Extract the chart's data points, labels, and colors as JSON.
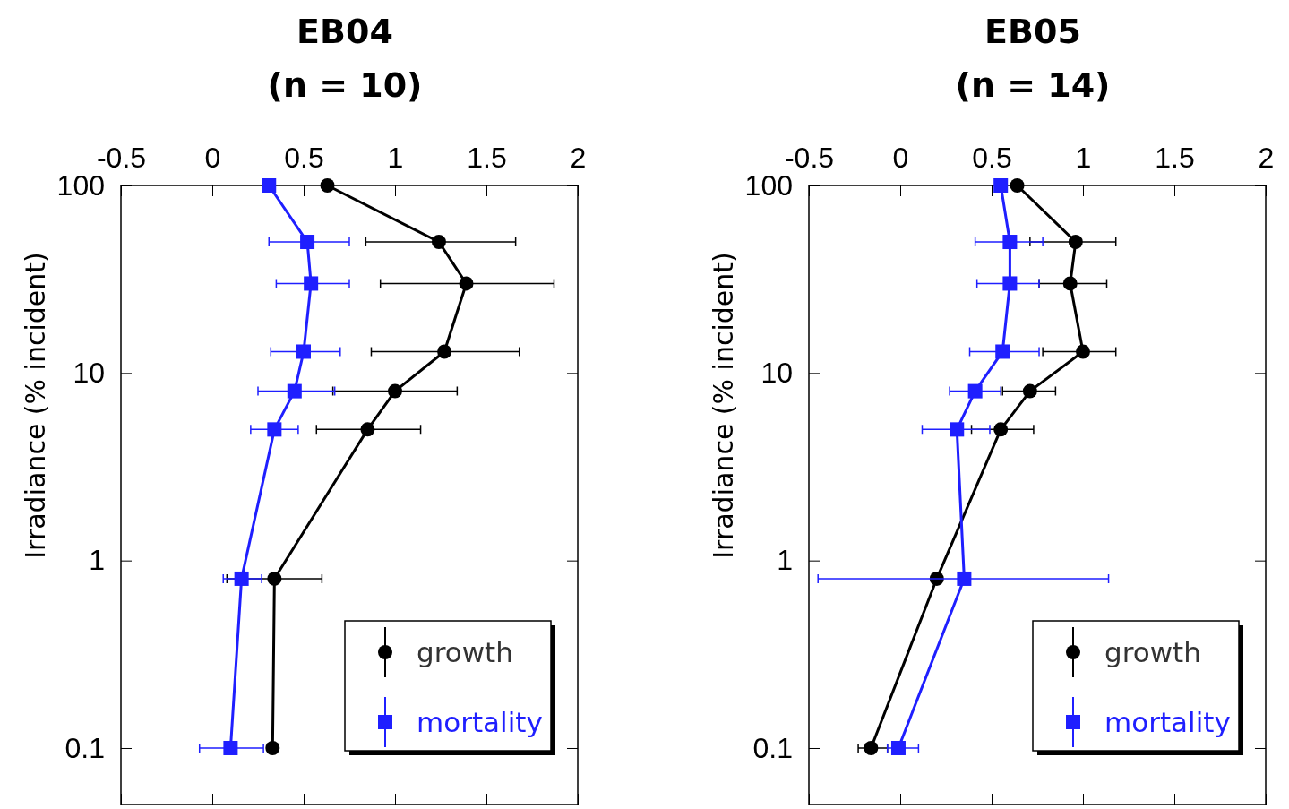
{
  "chart_data": [
    {
      "type": "line",
      "title": "EB04",
      "subtitle": "(n = 10)",
      "ylabel": "Irradiance (% incident)",
      "log": "y",
      "xlim": [
        -0.5,
        2
      ],
      "xticks": [
        -0.5,
        0,
        0.5,
        1,
        1.5,
        2
      ],
      "ylim": [
        0.05,
        100
      ],
      "yticks": [
        0.1,
        1,
        10,
        100
      ],
      "legend": "bottom right",
      "series": [
        {
          "name": "growth",
          "color": "#000000",
          "marker": "circle",
          "x": [
            0.63,
            1.24,
            1.39,
            1.27,
            1.0,
            0.85,
            0.34,
            0.33
          ],
          "values": [
            100,
            50,
            30,
            13,
            8,
            5,
            0.8,
            0.1
          ],
          "xerrors": [
            null,
            [
              0.84,
              1.66
            ],
            [
              0.92,
              1.87
            ],
            [
              0.87,
              1.68
            ],
            [
              0.66,
              1.34
            ],
            [
              0.57,
              1.14
            ],
            0.26,
            null
          ]
        },
        {
          "name": "mortality",
          "color": "#1f1fff",
          "marker": "square",
          "x": [
            0.31,
            0.52,
            0.54,
            0.5,
            0.45,
            0.34,
            0.16,
            0.1
          ],
          "values": [
            100,
            50,
            30,
            13,
            8,
            5,
            0.8,
            0.1
          ],
          "xerrors": [
            null,
            [
              0.31,
              0.75
            ],
            [
              0.35,
              0.75
            ],
            [
              0.32,
              0.7
            ],
            [
              0.25,
              0.67
            ],
            [
              0.21,
              0.47
            ],
            [
              0.06,
              0.27
            ],
            [
              -0.07,
              0.28
            ]
          ]
        }
      ]
    },
    {
      "type": "line",
      "title": "EB05",
      "subtitle": "(n = 14)",
      "ylabel": "Irradiance (% incident)",
      "log": "y",
      "xlim": [
        -0.5,
        2
      ],
      "xticks": [
        -0.5,
        0,
        0.5,
        1,
        1.5,
        2
      ],
      "ylim": [
        0.05,
        100
      ],
      "yticks": [
        0.1,
        1,
        10,
        100
      ],
      "legend": "bottom right",
      "series": [
        {
          "name": "growth",
          "color": "#000000",
          "marker": "circle",
          "x": [
            0.64,
            0.96,
            0.93,
            1.0,
            0.71,
            0.55,
            0.2,
            -0.16
          ],
          "values": [
            100,
            50,
            30,
            13,
            8,
            5,
            0.8,
            0.1
          ],
          "xerrors": [
            null,
            [
              0.71,
              1.18
            ],
            [
              0.76,
              1.13
            ],
            [
              0.78,
              1.18
            ],
            [
              0.56,
              0.85
            ],
            [
              0.39,
              0.73
            ],
            null,
            [
              -0.23,
              -0.07
            ]
          ]
        },
        {
          "name": "mortality",
          "color": "#1f1fff",
          "marker": "square",
          "x": [
            0.55,
            0.6,
            0.6,
            0.56,
            0.41,
            0.31,
            0.35,
            -0.01
          ],
          "values": [
            100,
            50,
            30,
            13,
            8,
            5,
            0.8,
            0.1
          ],
          "xerrors": [
            null,
            [
              0.41,
              0.78
            ],
            [
              0.42,
              0.76
            ],
            [
              0.38,
              0.76
            ],
            [
              0.27,
              0.55
            ],
            [
              0.12,
              0.49
            ],
            [
              -0.45,
              1.14
            ],
            [
              -0.07,
              0.1
            ]
          ]
        }
      ]
    }
  ]
}
